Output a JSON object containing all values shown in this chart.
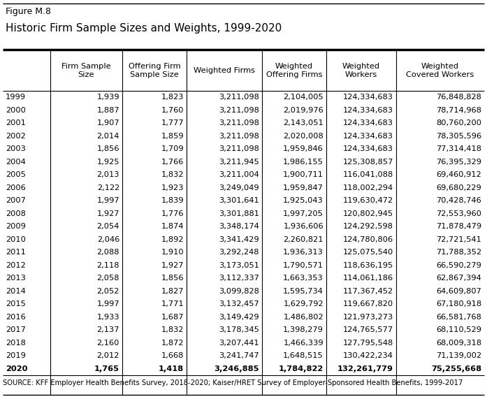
{
  "figure_label": "Figure M.8",
  "title": "Historic Firm Sample Sizes and Weights, 1999-2020",
  "source": "SOURCE: KFF Employer Health Benefits Survey, 2018-2020; Kaiser/HRET Survey of Employer-Sponsored Health Benefits, 1999-2017",
  "col_headers": [
    "",
    "Firm Sample\nSize",
    "Offering Firm\nSample Size",
    "Weighted Firms",
    "Weighted\nOffering Firms",
    "Weighted\nWorkers",
    "Weighted\nCovered Workers"
  ],
  "data": [
    [
      "1999",
      "1,939",
      "1,823",
      "3,211,098",
      "2,104,005",
      "124,334,683",
      "76,848,828"
    ],
    [
      "2000",
      "1,887",
      "1,760",
      "3,211,098",
      "2,019,976",
      "124,334,683",
      "78,714,968"
    ],
    [
      "2001",
      "1,907",
      "1,777",
      "3,211,098",
      "2,143,051",
      "124,334,683",
      "80,760,200"
    ],
    [
      "2002",
      "2,014",
      "1,859",
      "3,211,098",
      "2,020,008",
      "124,334,683",
      "78,305,596"
    ],
    [
      "2003",
      "1,856",
      "1,709",
      "3,211,098",
      "1,959,846",
      "124,334,683",
      "77,314,418"
    ],
    [
      "2004",
      "1,925",
      "1,766",
      "3,211,945",
      "1,986,155",
      "125,308,857",
      "76,395,329"
    ],
    [
      "2005",
      "2,013",
      "1,832",
      "3,211,004",
      "1,900,711",
      "116,041,088",
      "69,460,912"
    ],
    [
      "2006",
      "2,122",
      "1,923",
      "3,249,049",
      "1,959,847",
      "118,002,294",
      "69,680,229"
    ],
    [
      "2007",
      "1,997",
      "1,839",
      "3,301,641",
      "1,925,043",
      "119,630,472",
      "70,428,746"
    ],
    [
      "2008",
      "1,927",
      "1,776",
      "3,301,881",
      "1,997,205",
      "120,802,945",
      "72,553,960"
    ],
    [
      "2009",
      "2,054",
      "1,874",
      "3,348,174",
      "1,936,606",
      "124,292,598",
      "71,878,479"
    ],
    [
      "2010",
      "2,046",
      "1,892",
      "3,341,429",
      "2,260,821",
      "124,780,806",
      "72,721,541"
    ],
    [
      "2011",
      "2,088",
      "1,910",
      "3,292,248",
      "1,936,313",
      "125,075,540",
      "71,788,352"
    ],
    [
      "2012",
      "2,118",
      "1,927",
      "3,173,051",
      "1,790,571",
      "118,636,195",
      "66,590,279"
    ],
    [
      "2013",
      "2,058",
      "1,856",
      "3,112,337",
      "1,663,353",
      "114,061,186",
      "62,867,394"
    ],
    [
      "2014",
      "2,052",
      "1,827",
      "3,099,828",
      "1,595,734",
      "117,367,452",
      "64,609,807"
    ],
    [
      "2015",
      "1,997",
      "1,771",
      "3,132,457",
      "1,629,792",
      "119,667,820",
      "67,180,918"
    ],
    [
      "2016",
      "1,933",
      "1,687",
      "3,149,429",
      "1,486,802",
      "121,973,273",
      "66,581,768"
    ],
    [
      "2017",
      "2,137",
      "1,832",
      "3,178,345",
      "1,398,279",
      "124,765,577",
      "68,110,529"
    ],
    [
      "2018",
      "2,160",
      "1,872",
      "3,207,441",
      "1,466,339",
      "127,795,548",
      "68,009,318"
    ],
    [
      "2019",
      "2,012",
      "1,668",
      "3,241,747",
      "1,648,515",
      "130,422,234",
      "71,139,002"
    ],
    [
      "2020",
      "1,765",
      "1,418",
      "3,246,885",
      "1,784,822",
      "132,261,779",
      "75,255,668"
    ]
  ],
  "figure_label_fontsize": 9,
  "title_fontsize": 11,
  "table_fontsize": 8.2,
  "source_fontsize": 7.2,
  "header_fontsize": 8.2
}
